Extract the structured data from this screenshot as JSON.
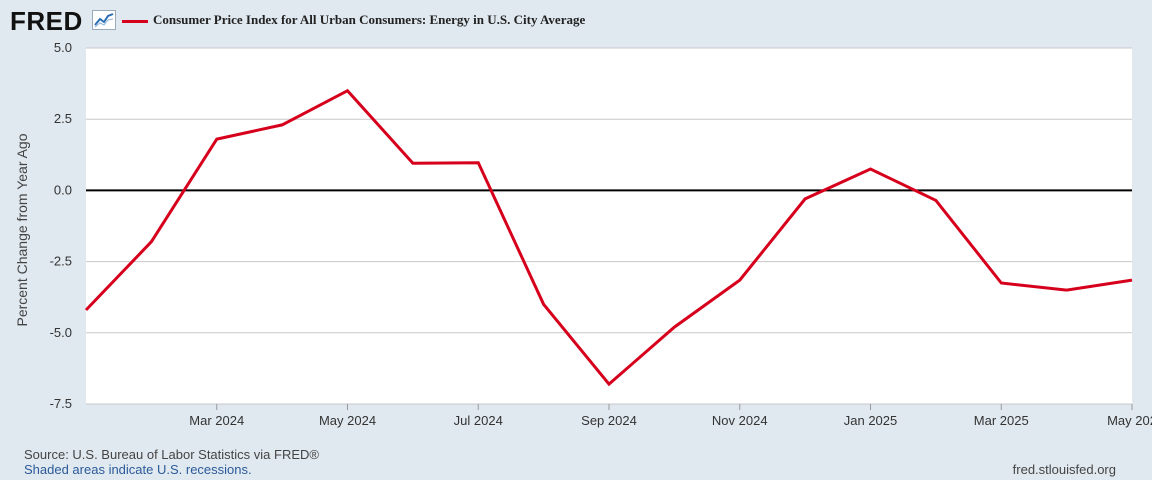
{
  "header": {
    "logo_text": "FRED",
    "logo_icon": "sparkline-chart-icon",
    "series_title": "Consumer Price Index for All Urban Consumers: Energy in U.S. City Average"
  },
  "footer": {
    "source": "Source: U.S. Bureau of Labor Statistics via FRED®",
    "recessions": "Shaded areas indicate U.S. recessions.",
    "website": "fred.stlouisfed.org"
  },
  "colors": {
    "background": "#e1e9f0",
    "plot_background": "#ffffff",
    "series_line": "#d6001c",
    "grid": "#c8c8c8",
    "zero_line": "#000000"
  },
  "chart_data": {
    "type": "line",
    "title": "Consumer Price Index for All Urban Consumers: Energy in U.S. City Average",
    "xlabel": "",
    "ylabel": "Percent Change from Year Ago",
    "ylim": [
      -7.5,
      5.0
    ],
    "yticks": [
      5.0,
      2.5,
      0.0,
      -2.5,
      -5.0,
      -7.5
    ],
    "ytick_labels": [
      "5.0",
      "2.5",
      "0.0",
      "-2.5",
      "-5.0",
      "-7.5"
    ],
    "xticks": [
      {
        "index": 2,
        "label": "Mar 2024"
      },
      {
        "index": 4,
        "label": "May 2024"
      },
      {
        "index": 6,
        "label": "Jul 2024"
      },
      {
        "index": 8,
        "label": "Sep 2024"
      },
      {
        "index": 10,
        "label": "Nov 2024"
      },
      {
        "index": 12,
        "label": "Jan 2025"
      },
      {
        "index": 14,
        "label": "Mar 2025"
      },
      {
        "index": 16,
        "label": "May 202"
      }
    ],
    "grid": true,
    "legend": "top-left",
    "series": [
      {
        "name": "Consumer Price Index for All Urban Consumers: Energy in U.S. City Average",
        "x": [
          "2024-01",
          "2024-02",
          "2024-03",
          "2024-04",
          "2024-05",
          "2024-06",
          "2024-07",
          "2024-08",
          "2024-09",
          "2024-10",
          "2024-11",
          "2024-12",
          "2025-01",
          "2025-02",
          "2025-03",
          "2025-04",
          "2025-05"
        ],
        "values": [
          -4.2,
          -1.8,
          1.8,
          2.3,
          3.5,
          0.95,
          0.97,
          -4.0,
          -6.8,
          -4.8,
          -3.15,
          -0.3,
          0.75,
          -0.35,
          -3.25,
          -3.5,
          -3.15
        ]
      }
    ]
  }
}
